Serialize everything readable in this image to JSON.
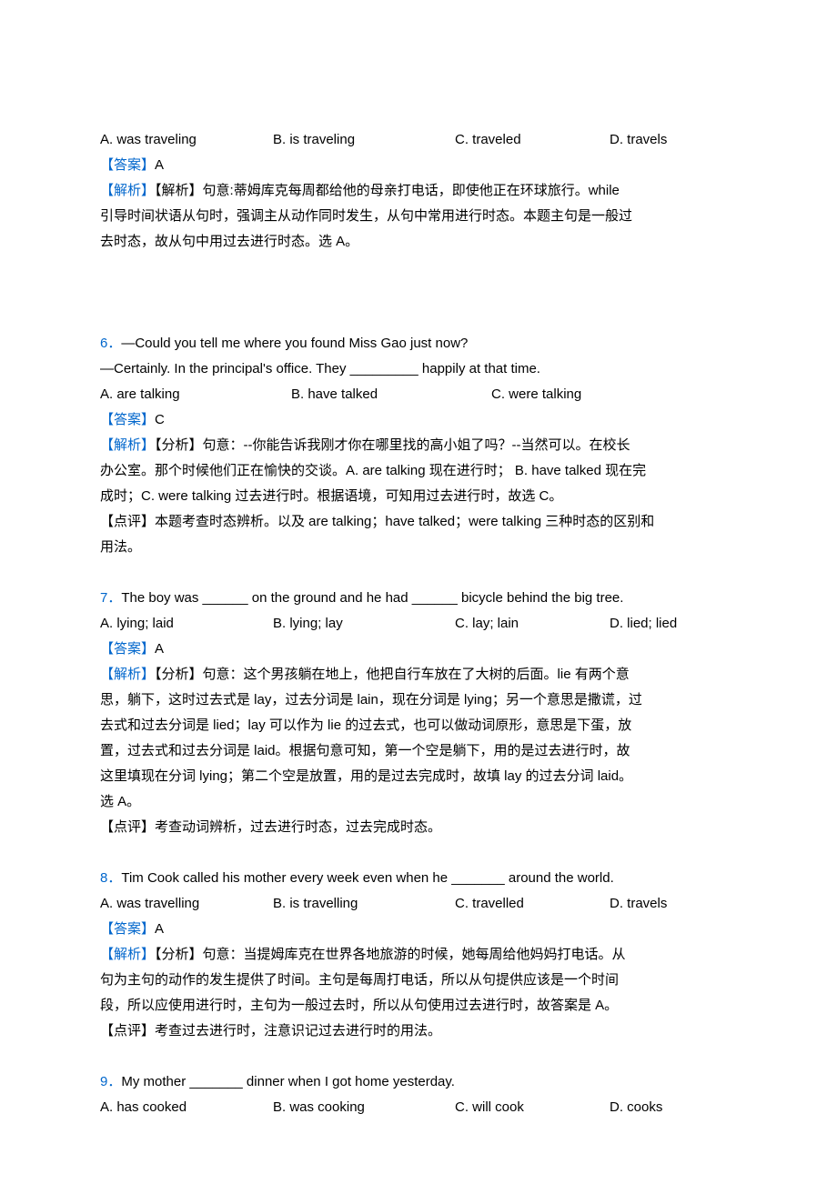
{
  "q5": {
    "options": {
      "a": "A. was traveling",
      "b": "B. is traveling",
      "c": "C. traveled",
      "d": "D. travels"
    },
    "answer_label": "【答案】",
    "answer": "A",
    "explain_label": "【解析】",
    "explain_tag": "【解析】",
    "explain_1": "句意:蒂姆库克每周都给他的母亲打电话，即使他正在环球旅行。while",
    "explain_2": "引导时间状语从句时，强调主从动作同时发生，从句中常用进行时态。本题主句是一般过",
    "explain_3": "去时态，故从句中用过去进行时态。选 A。"
  },
  "q6": {
    "num": "6．",
    "stem1": "—Could you tell me where you found Miss Gao just now?",
    "stem2": "—Certainly. In the principal's office. They _________ happily at that time.",
    "options": {
      "a": "A. are talking",
      "b": "B. have talked",
      "c": "C. were talking"
    },
    "answer_label": "【答案】",
    "answer": "C",
    "explain_label": "【解析】",
    "explain_tag": "【分析】",
    "explain_1": "句意：--你能告诉我刚才你在哪里找的高小姐了吗？--当然可以。在校长",
    "explain_2": "办公室。那个时候他们正在愉快的交谈。A. are talking 现在进行时； B. have talked 现在完",
    "explain_3": "成时；C. were talking 过去进行时。根据语境，可知用过去进行时，故选 C。",
    "comment_1": "【点评】本题考查时态辨析。以及 are talking；have talked；were talking 三种时态的区别和",
    "comment_2": "用法。"
  },
  "q7": {
    "num": "7．",
    "stem": "The boy was ______ on the ground and he had ______ bicycle behind the big tree.",
    "options": {
      "a": "A. lying; laid",
      "b": "B. lying; lay",
      "c": "C. lay; lain",
      "d": "D. lied; lied"
    },
    "answer_label": "【答案】",
    "answer": "A",
    "explain_label": "【解析】",
    "explain_tag": "【分析】",
    "explain_1": "句意：这个男孩躺在地上，他把自行车放在了大树的后面。lie 有两个意",
    "explain_2": "思，躺下，这时过去式是 lay，过去分词是 lain，现在分词是 lying；另一个意思是撒谎，过",
    "explain_3": "去式和过去分词是 lied；lay 可以作为 lie 的过去式，也可以做动词原形，意思是下蛋，放",
    "explain_4": "置，过去式和过去分词是 laid。根据句意可知，第一个空是躺下，用的是过去进行时，故",
    "explain_5": "这里填现在分词 lying；第二个空是放置，用的是过去完成时，故填 lay 的过去分词 laid。",
    "explain_6": "选 A。",
    "comment_1": "【点评】考查动词辨析，过去进行时态，过去完成时态。"
  },
  "q8": {
    "num": "8．",
    "stem": "Tim Cook called his mother every week even when he _______ around the world.",
    "options": {
      "a": "A. was travelling",
      "b": "B. is travelling",
      "c": "C. travelled",
      "d": "D. travels"
    },
    "answer_label": "【答案】",
    "answer": "A",
    "explain_label": "【解析】",
    "explain_tag": "【分析】",
    "explain_1": "句意：当提姆库克在世界各地旅游的时候，她每周给他妈妈打电话。从",
    "explain_2": "句为主句的动作的发生提供了时间。主句是每周打电话，所以从句提供应该是一个时间",
    "explain_3": "段，所以应使用进行时，主句为一般过去时，所以从句使用过去进行时，故答案是 A。",
    "comment_1": "【点评】考查过去进行时，注意识记过去进行时的用法。"
  },
  "q9": {
    "num": "9．",
    "stem": "My mother _______ dinner when I got home yesterday.",
    "options": {
      "a": "A. has cooked",
      "b": "B. was cooking",
      "c": "C. will cook",
      "d": "D. cooks"
    }
  }
}
